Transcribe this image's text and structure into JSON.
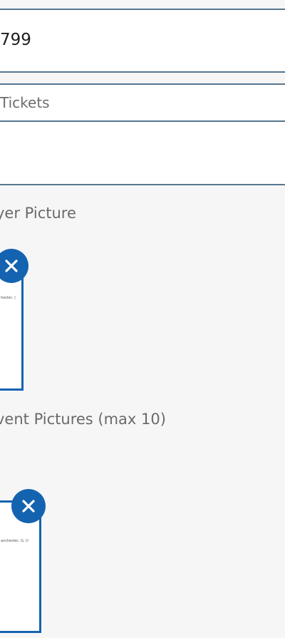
{
  "form": {
    "price": {
      "value": "799"
    },
    "tickets": {
      "placeholder": "Tickets"
    },
    "third_field": {
      "value": ""
    },
    "flyer": {
      "label": "yer Picture",
      "thumb_caption": "hester, (",
      "remove_icon": "close-icon"
    },
    "event_pictures": {
      "label": "vent Pictures (max 10)",
      "thumb_caption": "anchester, G, U",
      "remove_icon": "close-icon"
    }
  },
  "colors": {
    "accent": "#1463b0",
    "field_border": "#56768e",
    "background": "#f6f6f6"
  }
}
